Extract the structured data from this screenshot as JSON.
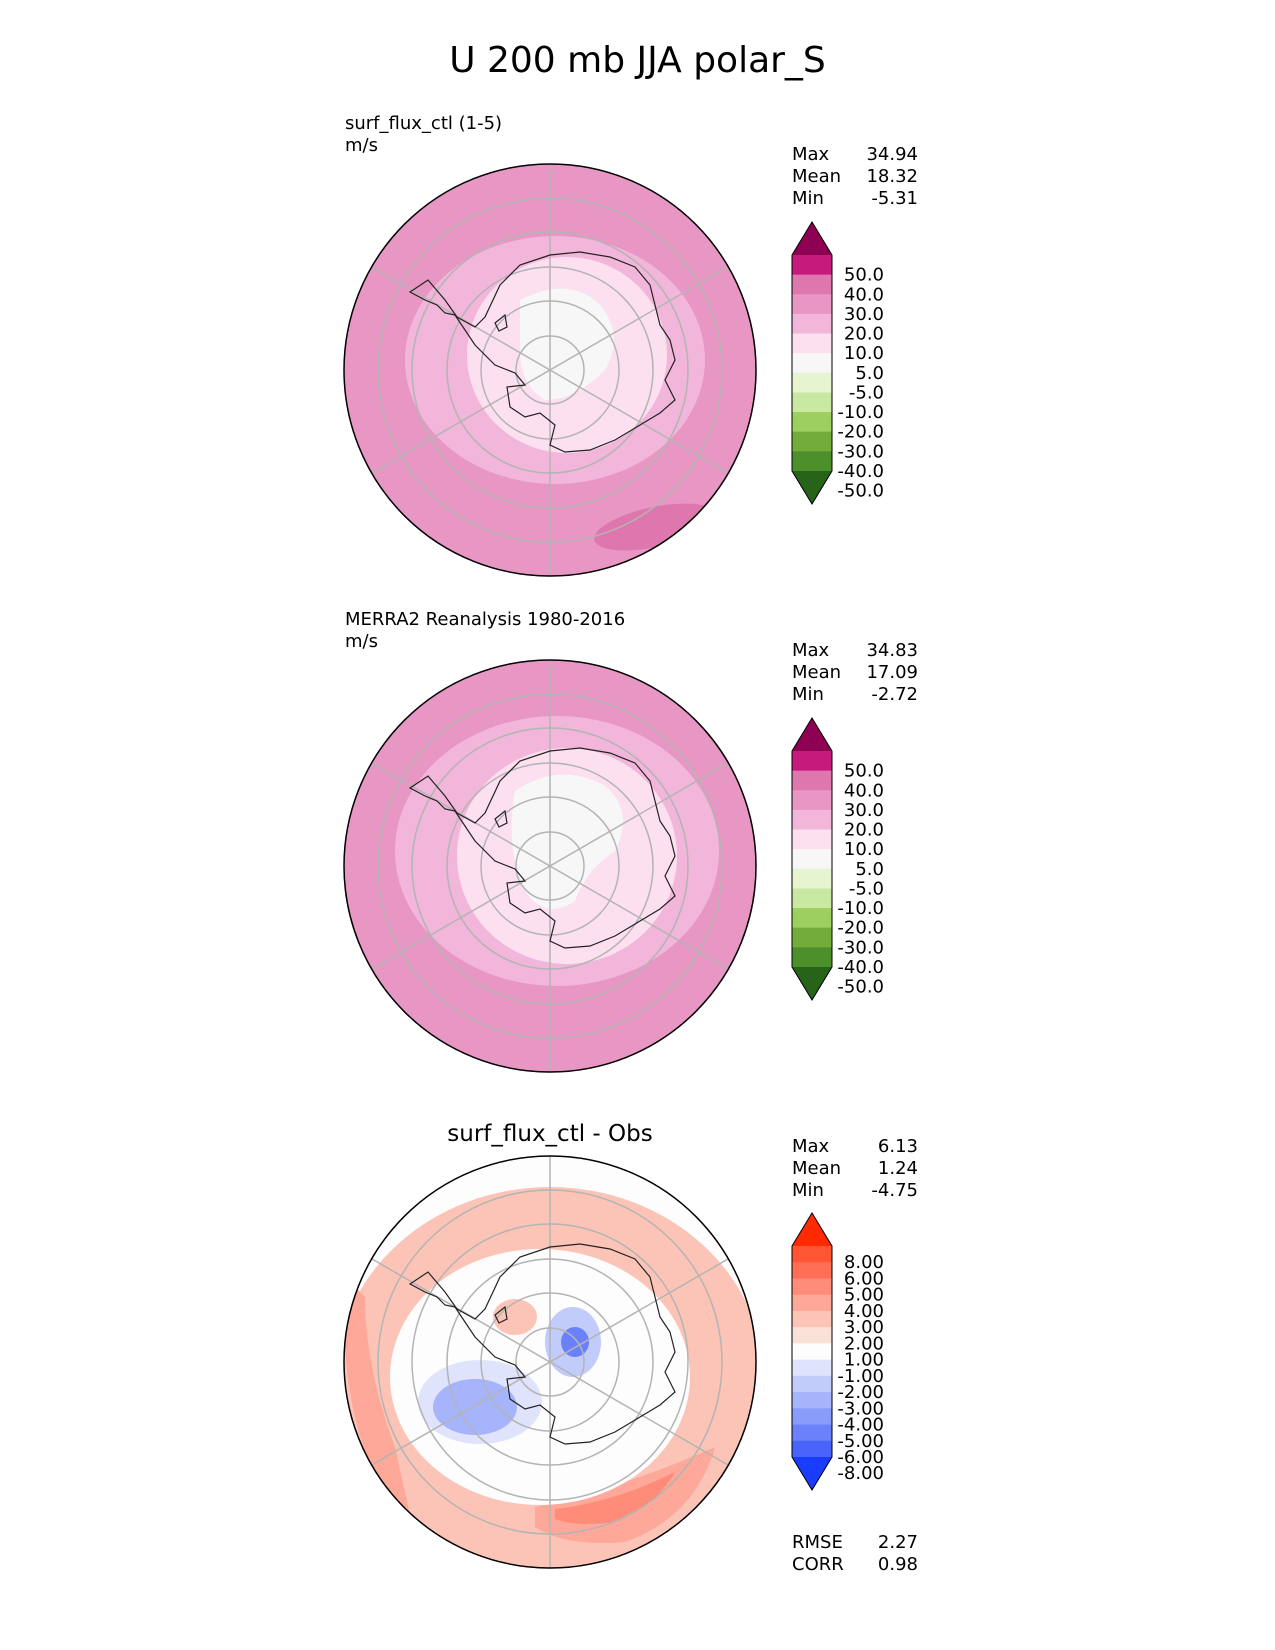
{
  "title": "U 200 mb JJA polar_S",
  "colors": {
    "map_background": "#e696c6",
    "grid": "#b4b4b4",
    "coast": "#222222"
  },
  "panels": [
    {
      "id": "test",
      "label": "surf_flux_ctl (1-5)",
      "units": "m/s",
      "stats": {
        "max_label": "Max",
        "max": "34.94",
        "mean_label": "Mean",
        "mean": "18.32",
        "min_label": "Min",
        "min": "-5.31"
      },
      "colorbar": {
        "levels": [
          "50.0",
          "40.0",
          "30.0",
          "20.0",
          "10.0",
          "5.0",
          "-5.0",
          "-10.0",
          "-20.0",
          "-30.0",
          "-40.0",
          "-50.0"
        ],
        "colors": [
          "#8e0152",
          "#c51b7d",
          "#de77ae",
          "#e896c4",
          "#f1b6da",
          "#fde0ef",
          "#f7f7f7",
          "#e6f5d0",
          "#c9e8a2",
          "#9ccf5e",
          "#73ac3a",
          "#4d8f2a",
          "#276419"
        ]
      }
    },
    {
      "id": "reference",
      "label": "MERRA2 Reanalysis 1980-2016",
      "units": "m/s",
      "stats": {
        "max_label": "Max",
        "max": "34.83",
        "mean_label": "Mean",
        "mean": "17.09",
        "min_label": "Min",
        "min": "-2.72"
      },
      "colorbar": {
        "levels": [
          "50.0",
          "40.0",
          "30.0",
          "20.0",
          "10.0",
          "5.0",
          "-5.0",
          "-10.0",
          "-20.0",
          "-30.0",
          "-40.0",
          "-50.0"
        ],
        "colors": [
          "#8e0152",
          "#c51b7d",
          "#de77ae",
          "#e896c4",
          "#f1b6da",
          "#fde0ef",
          "#f7f7f7",
          "#e6f5d0",
          "#c9e8a2",
          "#9ccf5e",
          "#73ac3a",
          "#4d8f2a",
          "#276419"
        ]
      }
    },
    {
      "id": "diff",
      "title": "surf_flux_ctl - Obs",
      "stats": {
        "max_label": "Max",
        "max": "6.13",
        "mean_label": "Mean",
        "mean": "1.24",
        "min_label": "Min",
        "min": "-4.75"
      },
      "metrics": {
        "rmse_label": "RMSE",
        "rmse": "2.27",
        "corr_label": "CORR",
        "corr": "0.98"
      },
      "colorbar": {
        "levels": [
          "8.00",
          "6.00",
          "5.00",
          "4.00",
          "3.00",
          "2.00",
          "1.00",
          "-1.00",
          "-2.00",
          "-3.00",
          "-4.00",
          "-5.00",
          "-6.00",
          "-8.00"
        ],
        "colors": [
          "#ff2a00",
          "#ff5533",
          "#ff6e55",
          "#ff8c78",
          "#fda898",
          "#fcc4b6",
          "#fbe0d8",
          "#fdfdfd",
          "#dfe3fb",
          "#c2ccfb",
          "#a6b5fb",
          "#8a9cfb",
          "#6b80fb",
          "#4a63fb",
          "#1a3cff"
        ]
      }
    }
  ],
  "chart_data": [
    {
      "type": "heatmap",
      "projection": "south polar stereographic",
      "title": "surf_flux_ctl (1-5)",
      "units": "m/s",
      "variable": "U 200 mb",
      "season": "JJA",
      "contour_levels": [
        -50,
        -40,
        -30,
        -20,
        -10,
        -5,
        5,
        10,
        20,
        30,
        40,
        50
      ],
      "max": 34.94,
      "mean": 18.32,
      "min": -5.31
    },
    {
      "type": "heatmap",
      "projection": "south polar stereographic",
      "title": "MERRA2 Reanalysis 1980-2016",
      "units": "m/s",
      "variable": "U 200 mb",
      "season": "JJA",
      "contour_levels": [
        -50,
        -40,
        -30,
        -20,
        -10,
        -5,
        5,
        10,
        20,
        30,
        40,
        50
      ],
      "max": 34.83,
      "mean": 17.09,
      "min": -2.72
    },
    {
      "type": "heatmap",
      "projection": "south polar stereographic",
      "title": "surf_flux_ctl - Obs",
      "contour_levels": [
        -8,
        -6,
        -5,
        -4,
        -3,
        -2,
        -1,
        1,
        2,
        3,
        4,
        5,
        6,
        8
      ],
      "max": 6.13,
      "mean": 1.24,
      "min": -4.75,
      "rmse": 2.27,
      "corr": 0.98
    }
  ]
}
